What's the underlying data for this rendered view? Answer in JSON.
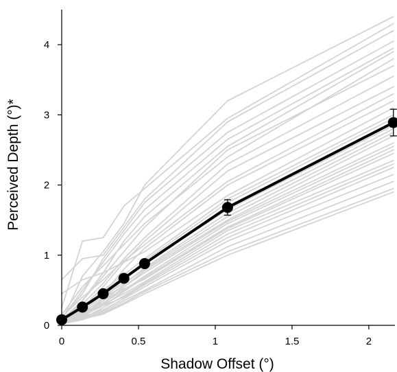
{
  "chart_data": {
    "type": "line",
    "title": "",
    "xlabel": "Shadow Offset (°)",
    "ylabel": "Perceived Depth (°)*",
    "xlim": [
      0,
      2.17
    ],
    "ylim": [
      0,
      4.5
    ],
    "x_ticks": [
      0,
      0.5,
      1,
      1.5,
      2
    ],
    "x_tick_labels": [
      "0",
      "0.5",
      "1",
      "1.5",
      "2"
    ],
    "y_ticks": [
      0,
      1,
      2,
      3,
      4
    ],
    "y_tick_labels": [
      "0",
      "1",
      "2",
      "3",
      "4"
    ],
    "grid": false,
    "legend": "none",
    "x": [
      0,
      0.135,
      0.27,
      0.405,
      0.54,
      1.08,
      2.16
    ],
    "mean_series": {
      "values": [
        0.08,
        0.26,
        0.45,
        0.67,
        0.88,
        1.68,
        2.89
      ],
      "error": [
        0.01,
        0.02,
        0.03,
        0.04,
        0.04,
        0.11,
        0.19
      ],
      "color": "#000000"
    },
    "individual_color": "#d3d3d3",
    "individual_series": [
      [
        0.05,
        0.7,
        1.05,
        1.45,
        2.0,
        3.2,
        4.4
      ],
      [
        0.25,
        1.2,
        1.25,
        1.7,
        1.95,
        2.95,
        4.3
      ],
      [
        0.65,
        0.95,
        1.0,
        1.4,
        1.8,
        2.9,
        4.2
      ],
      [
        0.1,
        0.45,
        0.95,
        1.35,
        1.75,
        2.75,
        4.05
      ],
      [
        0.08,
        0.35,
        0.75,
        1.2,
        1.55,
        2.55,
        3.9
      ],
      [
        0.15,
        0.55,
        0.85,
        1.15,
        1.45,
        2.4,
        3.8
      ],
      [
        0.05,
        0.3,
        0.6,
        0.95,
        1.25,
        2.3,
        3.55
      ],
      [
        0.02,
        0.25,
        0.55,
        0.9,
        1.2,
        2.2,
        3.4
      ],
      [
        0.12,
        0.4,
        0.65,
        0.92,
        1.15,
        2.05,
        3.3
      ],
      [
        0.05,
        0.2,
        0.45,
        0.8,
        1.1,
        2.0,
        3.2
      ],
      [
        0.45,
        0.65,
        0.75,
        0.9,
        1.05,
        1.85,
        3.1
      ],
      [
        0.03,
        0.25,
        0.5,
        0.72,
        0.95,
        1.8,
        3.0
      ],
      [
        0.06,
        0.18,
        0.38,
        0.65,
        0.92,
        1.75,
        2.95
      ],
      [
        0.08,
        0.28,
        0.48,
        0.68,
        0.88,
        1.65,
        2.85
      ],
      [
        0.04,
        0.15,
        0.35,
        0.58,
        0.82,
        1.6,
        2.8
      ],
      [
        0.1,
        0.3,
        0.42,
        0.6,
        0.8,
        1.55,
        2.75
      ],
      [
        0.02,
        0.12,
        0.3,
        0.55,
        0.78,
        1.5,
        2.7
      ],
      [
        0.07,
        0.22,
        0.4,
        0.55,
        0.75,
        1.48,
        2.6
      ],
      [
        0.05,
        0.18,
        0.32,
        0.5,
        0.7,
        1.45,
        2.55
      ],
      [
        0.03,
        0.14,
        0.28,
        0.48,
        0.68,
        1.4,
        2.5
      ],
      [
        0.06,
        0.2,
        0.35,
        0.52,
        0.66,
        1.38,
        2.45
      ],
      [
        0.04,
        0.16,
        0.3,
        0.45,
        0.62,
        1.35,
        2.35
      ],
      [
        0.02,
        0.1,
        0.25,
        0.42,
        0.6,
        1.3,
        2.3
      ],
      [
        0.05,
        0.15,
        0.28,
        0.4,
        0.58,
        1.25,
        2.25
      ],
      [
        0.03,
        0.12,
        0.22,
        0.38,
        0.55,
        1.2,
        2.15
      ],
      [
        0.04,
        0.1,
        0.2,
        0.35,
        0.5,
        1.12,
        2.05
      ],
      [
        0.02,
        0.08,
        0.18,
        0.32,
        0.48,
        1.05,
        1.95
      ],
      [
        0.03,
        0.09,
        0.16,
        0.3,
        0.45,
        1.0,
        1.9
      ],
      [
        0.05,
        0.35,
        0.7,
        1.05,
        1.4,
        2.5,
        3.7
      ],
      [
        0.09,
        0.5,
        0.9,
        1.3,
        1.65,
        2.65,
        3.95
      ]
    ]
  }
}
